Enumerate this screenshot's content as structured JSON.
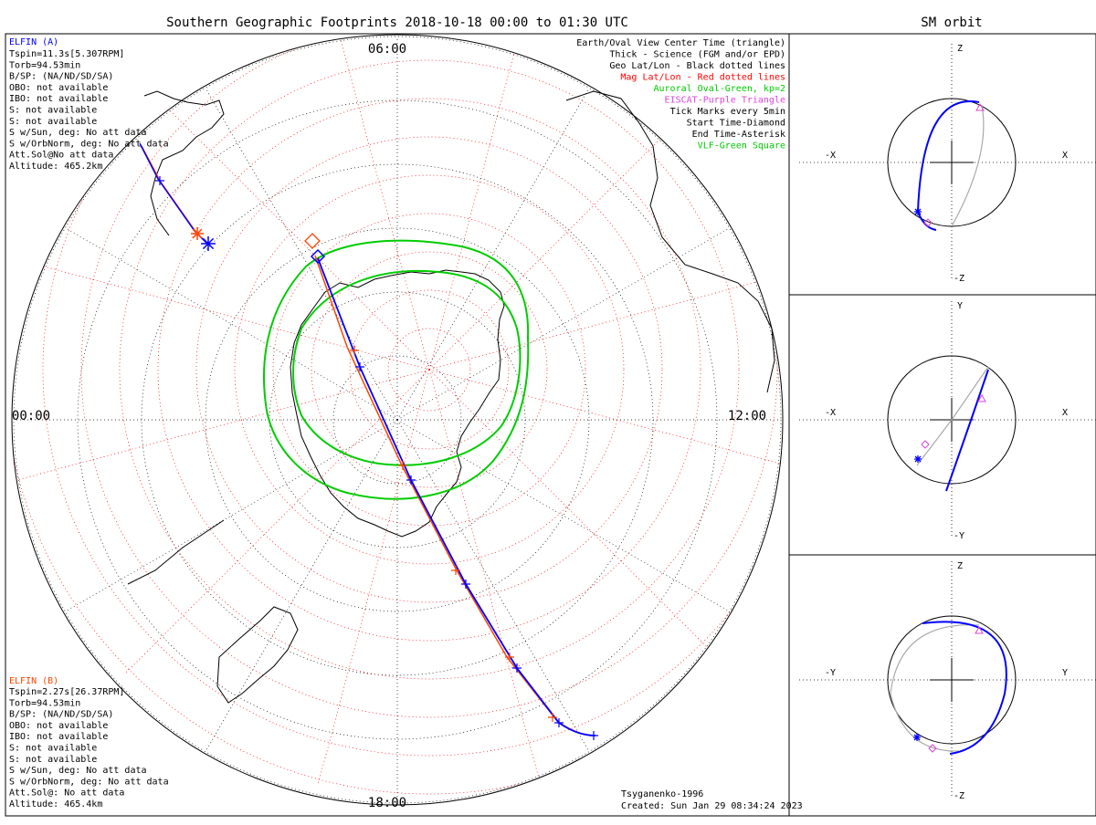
{
  "title": "Southern Geographic Footprints 2018-10-18 00:00 to 01:30 UTC",
  "orbit_title": "SM orbit",
  "clock": {
    "top": "06:00",
    "left": "00:00",
    "right": "12:00",
    "bottom": "18:00"
  },
  "elfin_a": {
    "name": "ELFIN (A)",
    "color": "#0000ff",
    "lines": [
      "Tspin=11.3s[5.307RPM]",
      "Torb=94.53min",
      "B/SP: (NA/ND/SD/SA)",
      "OBO: not available",
      "IBO: not available",
      "S: not available",
      "S: not available",
      "S w/Sun, deg: No att data",
      "S w/OrbNorm, deg: No att data",
      "Att.Sol@No att data",
      "Altitude: 465.2km"
    ]
  },
  "elfin_b": {
    "name": "ELFIN (B)",
    "color": "#ff4500",
    "lines": [
      "Tspin=2.27s[26.37RPM]",
      "Torb=94.53min",
      "B/SP: (NA/ND/SD/SA)",
      "OBO: not available",
      "IBO: not available",
      "S: not available",
      "S: not available",
      "S w/Sun, deg: No att data",
      "S w/OrbNorm, deg: No att data",
      "Att.Sol@: No att data",
      "Altitude: 465.4km"
    ]
  },
  "legend": [
    {
      "text": "Earth/Oval View Center Time (triangle)",
      "color": "#000000"
    },
    {
      "text": "Thick - Science (FGM and/or EPD)",
      "color": "#000000"
    },
    {
      "text": "Geo Lat/Lon - Black dotted lines",
      "color": "#000000"
    },
    {
      "text": "Mag Lat/Lon - Red dotted lines",
      "color": "#ff0000"
    },
    {
      "text": "Auroral Oval-Green, kp=2",
      "color": "#00cc00"
    },
    {
      "text": "EISCAT-Purple Triangle",
      "color": "#dd44dd"
    },
    {
      "text": "Tick Marks every 5min",
      "color": "#000000"
    },
    {
      "text": "Start Time-Diamond",
      "color": "#000000"
    },
    {
      "text": "End Time-Asterisk",
      "color": "#000000"
    },
    {
      "text": "VLF-Green Square",
      "color": "#00cc00"
    }
  ],
  "footer": {
    "model": "Tsyganenko-1996",
    "created": "Created: Sun Jan 29 08:34:24 2023"
  },
  "orbit_panels": [
    {
      "top": "Z",
      "bottom": "-Z",
      "left": "-X",
      "right": "X"
    },
    {
      "top": "Y",
      "bottom": "-Y",
      "left": "-X",
      "right": "X"
    },
    {
      "top": "Z",
      "bottom": "-Z",
      "left": "-Y",
      "right": "Y"
    }
  ],
  "colors": {
    "oval": "#00cc00",
    "mag_grid": "#ff0000",
    "geo_grid": "#000000",
    "track_a": "#0000ff",
    "track_b": "#ff4500",
    "orbit_gray": "#aaaaaa"
  }
}
